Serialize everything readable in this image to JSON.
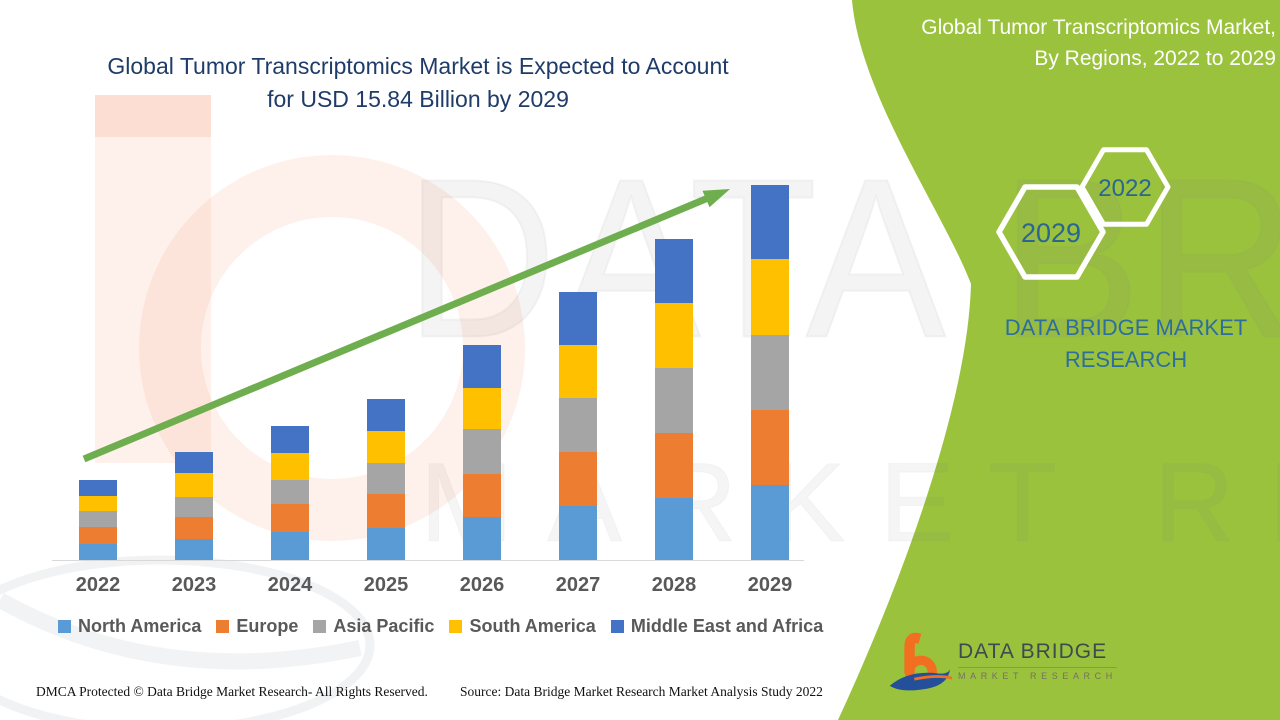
{
  "header": {
    "title_line1": "Global Tumor Transcriptomics Market is Expected to Account",
    "title_line2": "for USD 15.84 Billion by 2029"
  },
  "side_panel": {
    "heading_line1": "Global Tumor Transcriptomics Market,",
    "heading_line2": "By Regions, 2022 to 2029",
    "hexagon_small_label": "2022",
    "hexagon_large_label": "2029",
    "brand_line1": "DATA BRIDGE MARKET",
    "brand_line2": "RESEARCH",
    "logo_title": "DATA BRIDGE",
    "logo_subtitle": "MARKET RESEARCH"
  },
  "watermark": {
    "big_text": "DATA BRIDGE",
    "small_text": "MARKET RESEARCH"
  },
  "footer": {
    "dmca_text": "DMCA Protected © Data Bridge Market Research- All Rights Reserved.",
    "source_text": "Source: Data Bridge Market Research Market Analysis Study 2022"
  },
  "colors": {
    "north_america": "#5B9BD5",
    "europe": "#ED7D31",
    "asia_pacific": "#A5A5A5",
    "south_america": "#FFC000",
    "middle_east_africa": "#4472C4",
    "arrow_green": "#6FAE4E",
    "panel_green": "#9AC23D",
    "title_navy": "#1F3C68",
    "brand_blue": "#2E6E9E",
    "axis_gray": "#D9D9D9",
    "label_gray": "#595959"
  },
  "chart_data": {
    "type": "bar",
    "stacked": true,
    "title": "Global Tumor Transcriptomics Market, By Regions, 2022 to 2029",
    "value_unit": "USD Billion",
    "categories": [
      "2022",
      "2023",
      "2024",
      "2025",
      "2026",
      "2027",
      "2028",
      "2029"
    ],
    "series": [
      {
        "name": "North America",
        "color": "#5B9BD5",
        "values": [
          0.68,
          0.89,
          1.17,
          1.35,
          1.83,
          2.29,
          2.62,
          3.18
        ]
      },
      {
        "name": "Europe",
        "color": "#ED7D31",
        "values": [
          0.72,
          0.94,
          1.18,
          1.43,
          1.8,
          2.28,
          2.74,
          3.15
        ]
      },
      {
        "name": "Asia Pacific",
        "color": "#A5A5A5",
        "values": [
          0.68,
          0.84,
          1.04,
          1.31,
          1.88,
          2.27,
          2.74,
          3.18
        ]
      },
      {
        "name": "South America",
        "color": "#FFC000",
        "values": [
          0.63,
          1.0,
          1.11,
          1.36,
          1.75,
          2.25,
          2.74,
          3.19
        ]
      },
      {
        "name": "Middle East and Africa",
        "color": "#4472C4",
        "values": [
          0.68,
          0.87,
          1.17,
          1.36,
          1.8,
          2.24,
          2.7,
          3.14
        ]
      }
    ],
    "totals": [
      3.39,
      4.54,
      5.67,
      6.81,
      9.06,
      11.33,
      13.54,
      15.84
    ],
    "ylim": [
      0,
      16
    ],
    "xlabel": "",
    "ylabel": "",
    "grid": false,
    "y_axis_visible": false,
    "legend_position": "bottom",
    "annotations": [
      "upward green trend arrow from 2022 to 2029"
    ]
  }
}
